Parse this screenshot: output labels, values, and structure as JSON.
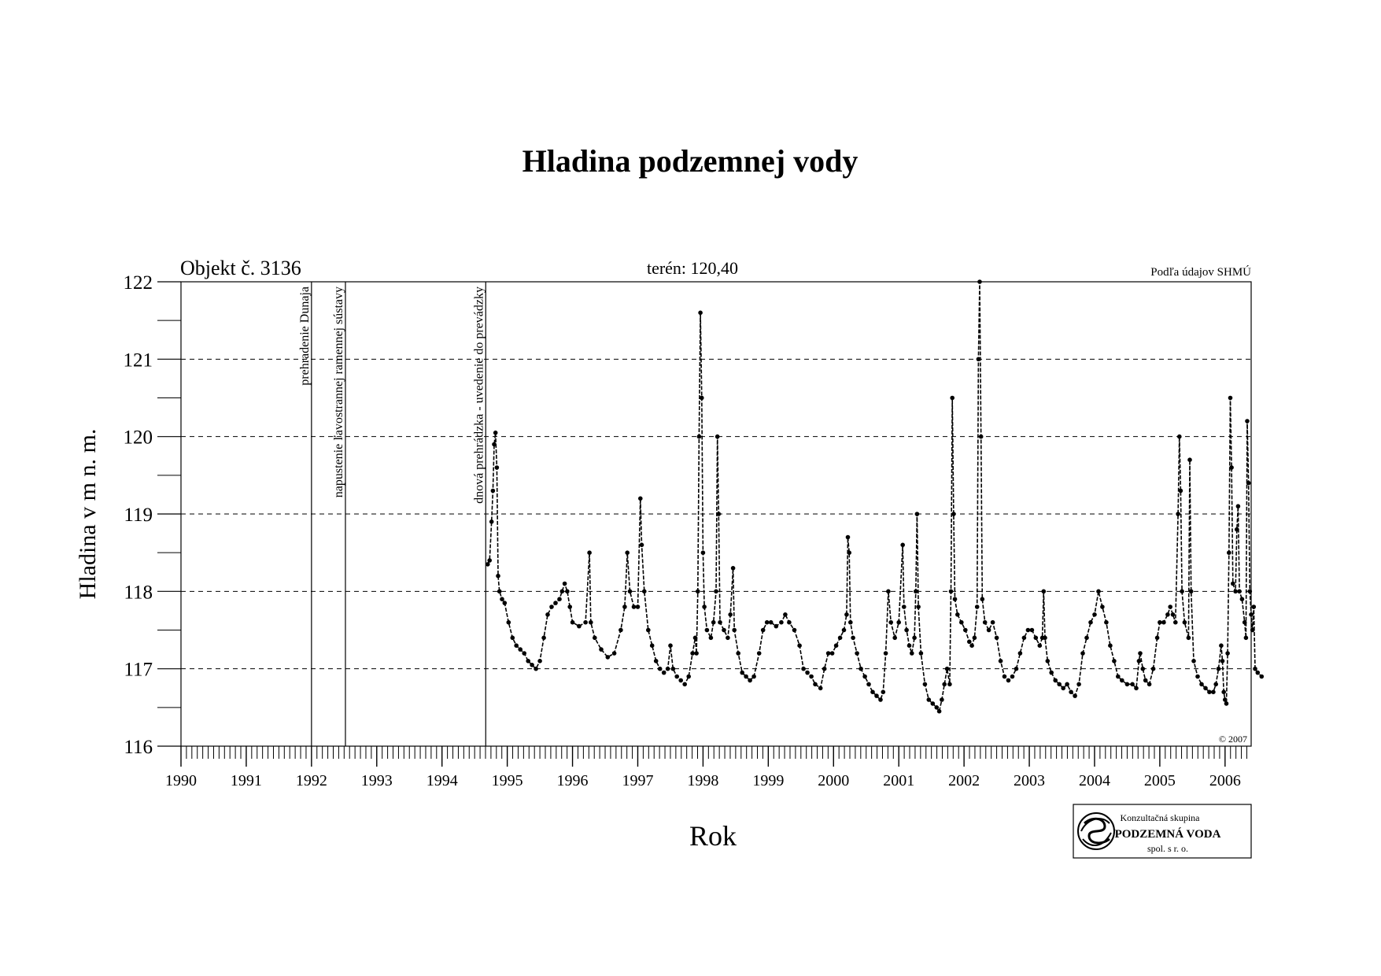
{
  "chart_data": {
    "type": "line",
    "title": "Hladina podzemnej vody",
    "object_label": "Objekt č. 3136",
    "terrain_label": "terén: 120,40",
    "source_label": "Podľa údajov SHMÚ",
    "copyright": "© 2007",
    "xlabel": "Rok",
    "ylabel": "Hladina v m n. m.",
    "xlim": [
      1990.0,
      2006.4
    ],
    "ylim": [
      116,
      122
    ],
    "yticks": [
      "116",
      "117",
      "118",
      "119",
      "120",
      "121",
      "122"
    ],
    "xticks": [
      "1990",
      "1991",
      "1992",
      "1993",
      "1994",
      "1995",
      "1996",
      "1997",
      "1998",
      "1999",
      "2000",
      "2001",
      "2002",
      "2003",
      "2004",
      "2005",
      "2006"
    ],
    "grid": "horizontal dashed",
    "events": [
      {
        "x": 1992.0,
        "label": "prehradenie Dunaja"
      },
      {
        "x": 1992.52,
        "label": "napustenie ľavostrannej ramennej sústavy"
      },
      {
        "x": 1994.67,
        "label": "dnová prehrádzka - uvedenie do prevádzky"
      }
    ],
    "series": [
      {
        "color": "#000000",
        "style": "dashed line with point markers",
        "points": [
          [
            1994.7,
            118.35
          ],
          [
            1994.73,
            118.4
          ],
          [
            1994.76,
            118.9
          ],
          [
            1994.78,
            119.3
          ],
          [
            1994.8,
            119.9
          ],
          [
            1994.82,
            120.05
          ],
          [
            1994.84,
            119.6
          ],
          [
            1994.86,
            118.2
          ],
          [
            1994.88,
            118.0
          ],
          [
            1994.92,
            117.9
          ],
          [
            1994.96,
            117.85
          ],
          [
            1995.02,
            117.6
          ],
          [
            1995.08,
            117.4
          ],
          [
            1995.14,
            117.3
          ],
          [
            1995.2,
            117.25
          ],
          [
            1995.26,
            117.2
          ],
          [
            1995.32,
            117.1
          ],
          [
            1995.38,
            117.05
          ],
          [
            1995.44,
            117.0
          ],
          [
            1995.5,
            117.1
          ],
          [
            1995.56,
            117.4
          ],
          [
            1995.62,
            117.7
          ],
          [
            1995.68,
            117.8
          ],
          [
            1995.74,
            117.85
          ],
          [
            1995.8,
            117.9
          ],
          [
            1995.84,
            118.0
          ],
          [
            1995.88,
            118.1
          ],
          [
            1995.92,
            118.0
          ],
          [
            1995.96,
            117.8
          ],
          [
            1996.0,
            117.6
          ],
          [
            1996.1,
            117.55
          ],
          [
            1996.2,
            117.6
          ],
          [
            1996.26,
            118.5
          ],
          [
            1996.28,
            117.6
          ],
          [
            1996.34,
            117.4
          ],
          [
            1996.44,
            117.25
          ],
          [
            1996.54,
            117.15
          ],
          [
            1996.64,
            117.2
          ],
          [
            1996.74,
            117.5
          ],
          [
            1996.8,
            117.8
          ],
          [
            1996.84,
            118.5
          ],
          [
            1996.88,
            118.0
          ],
          [
            1996.94,
            117.8
          ],
          [
            1997.0,
            117.8
          ],
          [
            1997.04,
            119.2
          ],
          [
            1997.06,
            118.6
          ],
          [
            1997.1,
            118.0
          ],
          [
            1997.16,
            117.5
          ],
          [
            1997.22,
            117.3
          ],
          [
            1997.28,
            117.1
          ],
          [
            1997.34,
            117.0
          ],
          [
            1997.4,
            116.95
          ],
          [
            1997.46,
            117.0
          ],
          [
            1997.5,
            117.3
          ],
          [
            1997.54,
            117.0
          ],
          [
            1997.6,
            116.9
          ],
          [
            1997.66,
            116.85
          ],
          [
            1997.72,
            116.8
          ],
          [
            1997.78,
            116.9
          ],
          [
            1997.84,
            117.2
          ],
          [
            1997.88,
            117.4
          ],
          [
            1997.9,
            117.2
          ],
          [
            1997.92,
            118.0
          ],
          [
            1997.94,
            120.0
          ],
          [
            1997.96,
            121.6
          ],
          [
            1997.98,
            120.5
          ],
          [
            1998.0,
            118.5
          ],
          [
            1998.02,
            117.8
          ],
          [
            1998.06,
            117.5
          ],
          [
            1998.12,
            117.4
          ],
          [
            1998.16,
            117.6
          ],
          [
            1998.2,
            118.0
          ],
          [
            1998.22,
            120.0
          ],
          [
            1998.24,
            119.0
          ],
          [
            1998.26,
            117.6
          ],
          [
            1998.32,
            117.5
          ],
          [
            1998.38,
            117.4
          ],
          [
            1998.42,
            117.7
          ],
          [
            1998.46,
            118.3
          ],
          [
            1998.48,
            117.5
          ],
          [
            1998.54,
            117.2
          ],
          [
            1998.6,
            116.95
          ],
          [
            1998.66,
            116.9
          ],
          [
            1998.72,
            116.85
          ],
          [
            1998.78,
            116.9
          ],
          [
            1998.86,
            117.2
          ],
          [
            1998.92,
            117.5
          ],
          [
            1998.98,
            117.6
          ],
          [
            1999.04,
            117.6
          ],
          [
            1999.12,
            117.55
          ],
          [
            1999.2,
            117.6
          ],
          [
            1999.26,
            117.7
          ],
          [
            1999.32,
            117.6
          ],
          [
            1999.4,
            117.5
          ],
          [
            1999.48,
            117.3
          ],
          [
            1999.54,
            117.0
          ],
          [
            1999.6,
            116.95
          ],
          [
            1999.66,
            116.9
          ],
          [
            1999.72,
            116.8
          ],
          [
            1999.8,
            116.75
          ],
          [
            1999.86,
            117.0
          ],
          [
            1999.92,
            117.2
          ],
          [
            1999.98,
            117.2
          ],
          [
            2000.04,
            117.3
          ],
          [
            2000.1,
            117.4
          ],
          [
            2000.16,
            117.5
          ],
          [
            2000.2,
            117.7
          ],
          [
            2000.22,
            118.7
          ],
          [
            2000.24,
            118.5
          ],
          [
            2000.26,
            117.6
          ],
          [
            2000.3,
            117.4
          ],
          [
            2000.36,
            117.2
          ],
          [
            2000.42,
            117.0
          ],
          [
            2000.48,
            116.9
          ],
          [
            2000.54,
            116.8
          ],
          [
            2000.6,
            116.7
          ],
          [
            2000.66,
            116.65
          ],
          [
            2000.72,
            116.6
          ],
          [
            2000.76,
            116.7
          ],
          [
            2000.8,
            117.2
          ],
          [
            2000.84,
            118.0
          ],
          [
            2000.88,
            117.6
          ],
          [
            2000.94,
            117.4
          ],
          [
            2001.0,
            117.6
          ],
          [
            2001.06,
            118.6
          ],
          [
            2001.08,
            117.8
          ],
          [
            2001.12,
            117.5
          ],
          [
            2001.16,
            117.3
          ],
          [
            2001.2,
            117.2
          ],
          [
            2001.24,
            117.4
          ],
          [
            2001.26,
            118.0
          ],
          [
            2001.28,
            119.0
          ],
          [
            2001.3,
            117.8
          ],
          [
            2001.34,
            117.2
          ],
          [
            2001.4,
            116.8
          ],
          [
            2001.46,
            116.6
          ],
          [
            2001.52,
            116.55
          ],
          [
            2001.58,
            116.5
          ],
          [
            2001.62,
            116.45
          ],
          [
            2001.66,
            116.6
          ],
          [
            2001.7,
            116.8
          ],
          [
            2001.74,
            117.0
          ],
          [
            2001.78,
            116.8
          ],
          [
            2001.8,
            118.0
          ],
          [
            2001.82,
            120.5
          ],
          [
            2001.84,
            119.0
          ],
          [
            2001.86,
            117.9
          ],
          [
            2001.9,
            117.7
          ],
          [
            2001.96,
            117.6
          ],
          [
            2002.02,
            117.5
          ],
          [
            2002.08,
            117.35
          ],
          [
            2002.12,
            117.3
          ],
          [
            2002.16,
            117.4
          ],
          [
            2002.2,
            117.8
          ],
          [
            2002.22,
            121.0
          ],
          [
            2002.24,
            122.0
          ],
          [
            2002.26,
            120.0
          ],
          [
            2002.28,
            117.9
          ],
          [
            2002.32,
            117.6
          ],
          [
            2002.38,
            117.5
          ],
          [
            2002.44,
            117.6
          ],
          [
            2002.5,
            117.4
          ],
          [
            2002.56,
            117.1
          ],
          [
            2002.62,
            116.9
          ],
          [
            2002.68,
            116.85
          ],
          [
            2002.74,
            116.9
          ],
          [
            2002.8,
            117.0
          ],
          [
            2002.86,
            117.2
          ],
          [
            2002.92,
            117.4
          ],
          [
            2002.98,
            117.5
          ],
          [
            2003.04,
            117.5
          ],
          [
            2003.1,
            117.4
          ],
          [
            2003.16,
            117.3
          ],
          [
            2003.2,
            117.4
          ],
          [
            2003.22,
            118.0
          ],
          [
            2003.24,
            117.4
          ],
          [
            2003.28,
            117.1
          ],
          [
            2003.34,
            116.95
          ],
          [
            2003.4,
            116.85
          ],
          [
            2003.46,
            116.8
          ],
          [
            2003.52,
            116.75
          ],
          [
            2003.58,
            116.8
          ],
          [
            2003.64,
            116.7
          ],
          [
            2003.7,
            116.65
          ],
          [
            2003.76,
            116.8
          ],
          [
            2003.82,
            117.2
          ],
          [
            2003.88,
            117.4
          ],
          [
            2003.94,
            117.6
          ],
          [
            2004.0,
            117.7
          ],
          [
            2004.06,
            118.0
          ],
          [
            2004.12,
            117.8
          ],
          [
            2004.18,
            117.6
          ],
          [
            2004.24,
            117.3
          ],
          [
            2004.3,
            117.1
          ],
          [
            2004.36,
            116.9
          ],
          [
            2004.42,
            116.85
          ],
          [
            2004.5,
            116.8
          ],
          [
            2004.58,
            116.8
          ],
          [
            2004.64,
            116.75
          ],
          [
            2004.68,
            117.1
          ],
          [
            2004.7,
            117.2
          ],
          [
            2004.74,
            117.0
          ],
          [
            2004.78,
            116.85
          ],
          [
            2004.84,
            116.8
          ],
          [
            2004.9,
            117.0
          ],
          [
            2004.96,
            117.4
          ],
          [
            2005.0,
            117.6
          ],
          [
            2005.06,
            117.6
          ],
          [
            2005.12,
            117.7
          ],
          [
            2005.16,
            117.8
          ],
          [
            2005.2,
            117.7
          ],
          [
            2005.24,
            117.6
          ],
          [
            2005.28,
            119.0
          ],
          [
            2005.3,
            120.0
          ],
          [
            2005.32,
            119.3
          ],
          [
            2005.34,
            118.0
          ],
          [
            2005.38,
            117.6
          ],
          [
            2005.44,
            117.4
          ],
          [
            2005.46,
            119.7
          ],
          [
            2005.48,
            118.0
          ],
          [
            2005.52,
            117.1
          ],
          [
            2005.58,
            116.9
          ],
          [
            2005.64,
            116.8
          ],
          [
            2005.7,
            116.75
          ],
          [
            2005.76,
            116.7
          ],
          [
            2005.82,
            116.7
          ],
          [
            2005.86,
            116.8
          ],
          [
            2005.9,
            117.0
          ],
          [
            2005.94,
            117.3
          ],
          [
            2005.96,
            117.1
          ],
          [
            2005.98,
            116.7
          ],
          [
            2006.0,
            116.6
          ],
          [
            2006.02,
            116.55
          ],
          [
            2006.04,
            117.2
          ],
          [
            2006.06,
            118.5
          ],
          [
            2006.08,
            120.5
          ],
          [
            2006.1,
            119.6
          ],
          [
            2006.12,
            118.1
          ],
          [
            2006.16,
            118.0
          ],
          [
            2006.18,
            118.8
          ],
          [
            2006.2,
            119.1
          ],
          [
            2006.22,
            118.0
          ],
          [
            2006.26,
            117.9
          ],
          [
            2006.3,
            117.6
          ],
          [
            2006.32,
            117.4
          ],
          [
            2006.34,
            120.2
          ],
          [
            2006.36,
            119.4
          ],
          [
            2006.38,
            118.0
          ],
          [
            2006.4,
            117.7
          ],
          [
            2006.42,
            117.5
          ],
          [
            2006.44,
            117.8
          ],
          [
            2006.46,
            117.0
          ],
          [
            2006.5,
            116.95
          ],
          [
            2006.56,
            116.9
          ]
        ]
      }
    ]
  },
  "logo": {
    "line1": "Konzultačná skupina",
    "line2": "PODZEMNÁ VODA",
    "line3": "spol. s r. o."
  }
}
